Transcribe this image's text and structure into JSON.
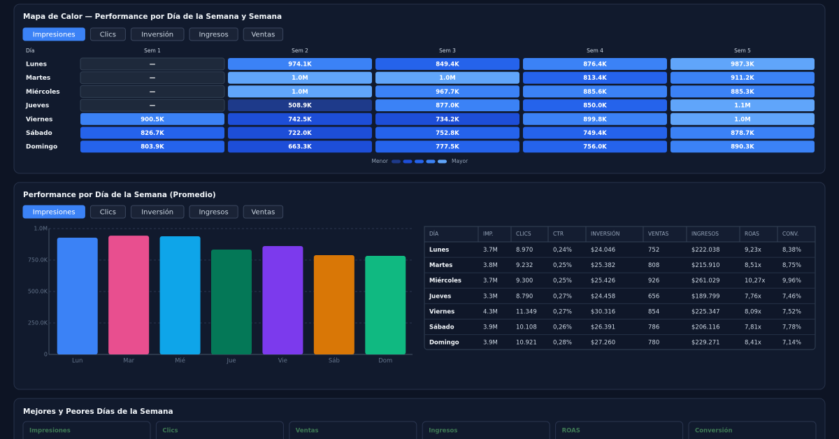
{
  "heatmap": {
    "title": "Mapa de Calor — Performance por Día de la Semana y Semana",
    "tabs": [
      "Impresiones",
      "Clics",
      "Inversión",
      "Ingresos",
      "Ventas"
    ],
    "active_tab": 0,
    "header_label": "Día",
    "columns": [
      "Sem 1",
      "Sem 2",
      "Sem 3",
      "Sem 4",
      "Sem 5"
    ],
    "rows": [
      "Lunes",
      "Martes",
      "Miércoles",
      "Jueves",
      "Viernes",
      "Sábado",
      "Domingo"
    ],
    "values": [
      [
        null,
        974100,
        849400,
        876400,
        987300
      ],
      [
        null,
        1000000,
        1000000,
        813400,
        911200
      ],
      [
        null,
        1000000,
        967700,
        885600,
        885300
      ],
      [
        null,
        508900,
        877000,
        850000,
        1100000
      ],
      [
        900500,
        742500,
        734200,
        899800,
        1000000
      ],
      [
        826700,
        722000,
        752800,
        749400,
        878700
      ],
      [
        803900,
        663300,
        777500,
        756000,
        890300
      ]
    ],
    "value_labels": [
      [
        "—",
        "974.1K",
        "849.4K",
        "876.4K",
        "987.3K"
      ],
      [
        "—",
        "1.0M",
        "1.0M",
        "813.4K",
        "911.2K"
      ],
      [
        "—",
        "1.0M",
        "967.7K",
        "885.6K",
        "885.3K"
      ],
      [
        "—",
        "508.9K",
        "877.0K",
        "850.0K",
        "1.1M"
      ],
      [
        "900.5K",
        "742.5K",
        "734.2K",
        "899.8K",
        "1.0M"
      ],
      [
        "826.7K",
        "722.0K",
        "752.8K",
        "749.4K",
        "878.7K"
      ],
      [
        "803.9K",
        "663.3K",
        "777.5K",
        "756.0K",
        "890.3K"
      ]
    ],
    "colors": [
      "#1e3a8a",
      "#1d4ed8",
      "#2563eb",
      "#3b82f6",
      "#60a5fa"
    ],
    "empty_color": "#1e293b",
    "legend_low": "Menor",
    "legend_high": "Mayor"
  },
  "bar_panel": {
    "title": "Performance por Día de la Semana (Promedio)",
    "tabs": [
      "Impresiones",
      "Clics",
      "Inversión",
      "Ingresos",
      "Ventas"
    ],
    "active_tab": 0,
    "chart": {
      "type": "bar",
      "categories": [
        "Lun",
        "Mar",
        "Mié",
        "Jue",
        "Vie",
        "Sáb",
        "Dom"
      ],
      "values": [
        928000,
        944000,
        939000,
        833000,
        861000,
        789000,
        783000
      ],
      "colors": [
        "#3b82f6",
        "#e84f8f",
        "#0ea5e9",
        "#047857",
        "#7c3aed",
        "#d97706",
        "#10b981"
      ],
      "ylim": [
        0,
        1000000
      ],
      "yticks": [
        0,
        {
          "value": 250000,
          "label": "250.0K"
        },
        {
          "value": 500000,
          "label": "500.0K"
        },
        {
          "value": 750000,
          "label": "750.0K"
        },
        {
          "value": 1000000,
          "label": "1.0M"
        }
      ],
      "grid": true
    }
  },
  "table": {
    "columns": [
      "DÍA",
      "IMP.",
      "CLICS",
      "CTR",
      "INVERSIÓN",
      "VENTAS",
      "INGRESOS",
      "ROAS",
      "CONV."
    ],
    "rows": [
      [
        "Lunes",
        "3.7M",
        "8.970",
        "0,24%",
        "$24.046",
        "752",
        "$222.038",
        "9,23x",
        "8,38%"
      ],
      [
        "Martes",
        "3.8M",
        "9.232",
        "0,25%",
        "$25.382",
        "808",
        "$215.910",
        "8,51x",
        "8,75%"
      ],
      [
        "Miércoles",
        "3.7M",
        "9.300",
        "0,25%",
        "$25.426",
        "926",
        "$261.029",
        "10,27x",
        "9,96%"
      ],
      [
        "Jueves",
        "3.3M",
        "8.790",
        "0,27%",
        "$24.458",
        "656",
        "$189.799",
        "7,76x",
        "7,46%"
      ],
      [
        "Viernes",
        "4.3M",
        "11.349",
        "0,27%",
        "$30.316",
        "854",
        "$225.347",
        "8,09x",
        "7,52%"
      ],
      [
        "Sábado",
        "3.9M",
        "10.108",
        "0,26%",
        "$26.391",
        "786",
        "$206.116",
        "7,81x",
        "7,78%"
      ],
      [
        "Domingo",
        "3.9M",
        "10.921",
        "0,28%",
        "$27.260",
        "780",
        "$229.271",
        "8,41x",
        "7,14%"
      ]
    ]
  },
  "summary": {
    "title": "Mejores y Peores Días de la Semana",
    "cards": [
      "Impresiones",
      "Clics",
      "Ventas",
      "Ingresos",
      "ROAS",
      "Conversión"
    ]
  }
}
